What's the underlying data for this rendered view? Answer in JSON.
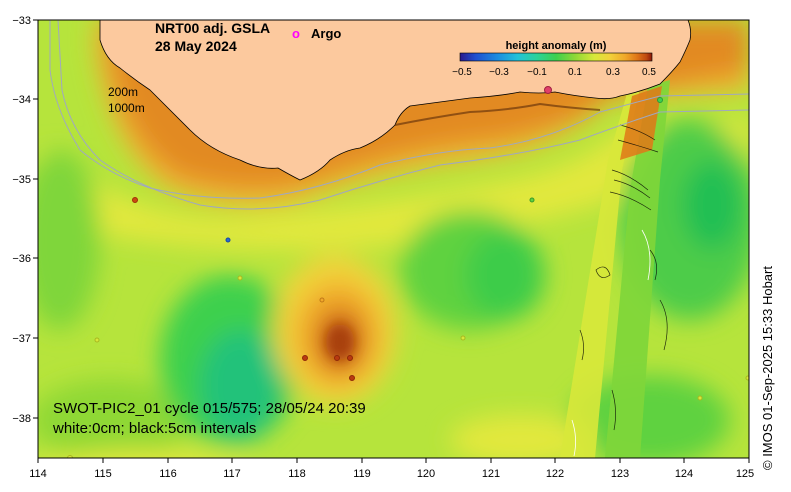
{
  "title": {
    "line1": "NRT00 adj. GSLA",
    "line2": "28 May 2024"
  },
  "legend": {
    "marker_symbol": "o",
    "label": "Argo",
    "marker_color": "#ff00ff"
  },
  "colorbar": {
    "title": "height anomaly (m)",
    "ticks": [
      "−0.5",
      "−0.3",
      "−0.1",
      "0.1",
      "0.3",
      "0.5"
    ],
    "colors": [
      "#2a1a8c",
      "#1f4fd0",
      "#1c8fe0",
      "#22c2d8",
      "#2bd29a",
      "#3dd04e",
      "#8fd836",
      "#d8e83a",
      "#f2d23a",
      "#f0a82a",
      "#e07818",
      "#c04a10",
      "#8a1a0a"
    ]
  },
  "isobaths": {
    "shallow": "200m",
    "deep": "1000m"
  },
  "swath_info": {
    "line1": "SWOT-PIC2_01 cycle 015/575; 28/05/24 20:39",
    "line2": "white:0cm; black:5cm intervals"
  },
  "x_axis_labels": [
    "114",
    "115",
    "116",
    "117",
    "118",
    "119",
    "120",
    "121",
    "122",
    "123",
    "124",
    "125"
  ],
  "y_axis_labels": [
    "−33",
    "−34",
    "−35",
    "−36",
    "−37",
    "−38"
  ],
  "credit": "©  IMOS 01-Sep-2025 15:33 Hobart",
  "colors": {
    "land": "#fcc99e",
    "sea_base": "#b6e43c",
    "frame": "#000000"
  }
}
